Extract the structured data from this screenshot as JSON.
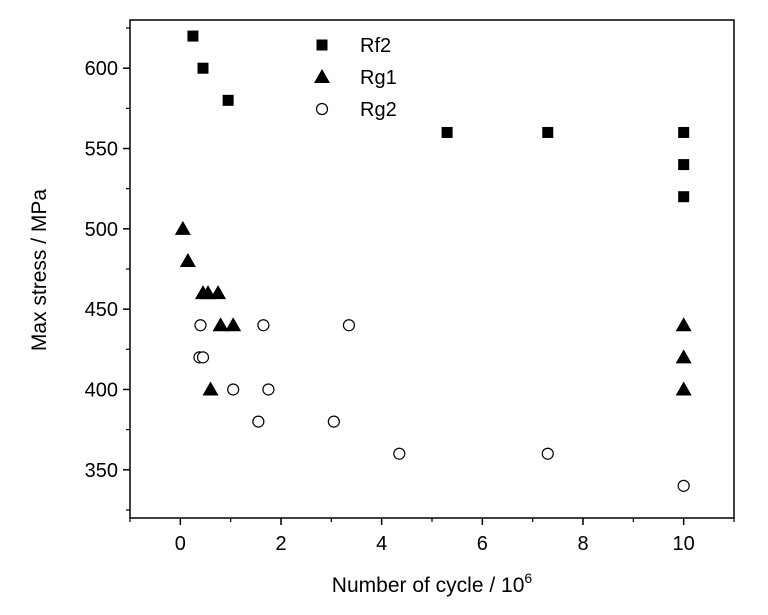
{
  "chart_data": {
    "type": "scatter",
    "xlabel": "Number of cycle / 10",
    "xlabel_exponent": "6",
    "ylabel": "Max stress / MPa",
    "xlim": [
      -1,
      11
    ],
    "ylim": [
      320,
      630
    ],
    "x_ticks": [
      0,
      2,
      4,
      6,
      8,
      10
    ],
    "y_ticks": [
      350,
      400,
      450,
      500,
      550,
      600
    ],
    "x_tick_labels": [
      "0",
      "2",
      "4",
      "6",
      "8",
      "10"
    ],
    "y_tick_labels": [
      "350",
      "400",
      "450",
      "500",
      "550",
      "600"
    ],
    "grid": false,
    "legend_position": "top-center",
    "series": [
      {
        "name": "Rf2",
        "marker": "filled-square",
        "color": "#000000",
        "points": [
          {
            "x": 0.25,
            "y": 620
          },
          {
            "x": 0.45,
            "y": 600
          },
          {
            "x": 0.95,
            "y": 580
          },
          {
            "x": 5.3,
            "y": 560
          },
          {
            "x": 7.3,
            "y": 560
          },
          {
            "x": 10.0,
            "y": 560
          },
          {
            "x": 10.0,
            "y": 540
          },
          {
            "x": 10.0,
            "y": 520
          }
        ]
      },
      {
        "name": "Rg1",
        "marker": "filled-triangle",
        "color": "#000000",
        "points": [
          {
            "x": 0.05,
            "y": 500
          },
          {
            "x": 0.15,
            "y": 480
          },
          {
            "x": 0.45,
            "y": 460
          },
          {
            "x": 0.55,
            "y": 460
          },
          {
            "x": 0.75,
            "y": 460
          },
          {
            "x": 0.8,
            "y": 440
          },
          {
            "x": 1.05,
            "y": 440
          },
          {
            "x": 0.6,
            "y": 400
          },
          {
            "x": 10.0,
            "y": 440
          },
          {
            "x": 10.0,
            "y": 420
          },
          {
            "x": 10.0,
            "y": 400
          }
        ]
      },
      {
        "name": "Rg2",
        "marker": "open-circle",
        "color": "#000000",
        "points": [
          {
            "x": 0.4,
            "y": 440
          },
          {
            "x": 1.65,
            "y": 440
          },
          {
            "x": 3.35,
            "y": 440
          },
          {
            "x": 0.38,
            "y": 420
          },
          {
            "x": 0.45,
            "y": 420
          },
          {
            "x": 1.05,
            "y": 400
          },
          {
            "x": 1.75,
            "y": 400
          },
          {
            "x": 1.55,
            "y": 380
          },
          {
            "x": 3.05,
            "y": 380
          },
          {
            "x": 4.35,
            "y": 360
          },
          {
            "x": 7.3,
            "y": 360
          },
          {
            "x": 10.0,
            "y": 340
          }
        ]
      }
    ]
  }
}
